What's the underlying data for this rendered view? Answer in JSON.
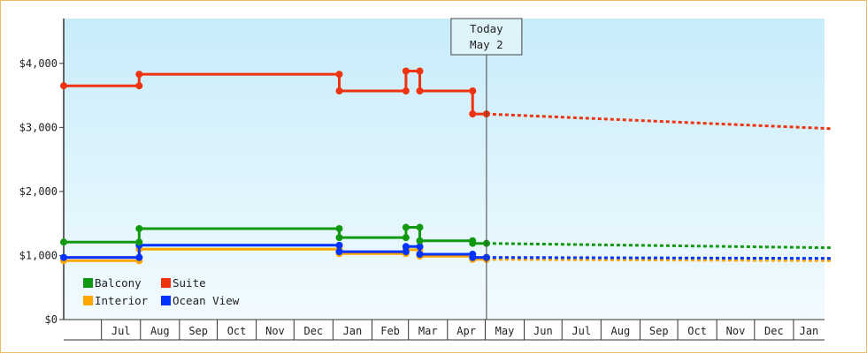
{
  "chart_data": {
    "type": "line",
    "title": "",
    "xlabel": "",
    "ylabel": "",
    "ylim": [
      0,
      4700
    ],
    "yticks": [
      {
        "value": 0,
        "label": "$0"
      },
      {
        "value": 1000,
        "label": "$1,000"
      },
      {
        "value": 2000,
        "label": "$2,000"
      },
      {
        "value": 3000,
        "label": "$3,000"
      },
      {
        "value": 4000,
        "label": "$4,000"
      }
    ],
    "x_axis": {
      "start": "2023-06-01",
      "end": "2025-02-01",
      "labels": [
        {
          "label": "Jul",
          "from": "2023-07-01",
          "to": "2023-08-01"
        },
        {
          "label": "Aug",
          "from": "2023-08-01",
          "to": "2023-09-01"
        },
        {
          "label": "Sep",
          "from": "2023-09-01",
          "to": "2023-10-01"
        },
        {
          "label": "Oct",
          "from": "2023-10-01",
          "to": "2023-11-01"
        },
        {
          "label": "Nov",
          "from": "2023-11-01",
          "to": "2023-12-01"
        },
        {
          "label": "Dec",
          "from": "2023-12-01",
          "to": "2024-01-01"
        },
        {
          "label": "Jan",
          "from": "2024-01-01",
          "to": "2024-02-01"
        },
        {
          "label": "Feb",
          "from": "2024-02-01",
          "to": "2024-03-01"
        },
        {
          "label": "Mar",
          "from": "2024-03-01",
          "to": "2024-04-01"
        },
        {
          "label": "Apr",
          "from": "2024-04-01",
          "to": "2024-05-01"
        },
        {
          "label": "May",
          "from": "2024-05-01",
          "to": "2024-06-01"
        },
        {
          "label": "Jun",
          "from": "2024-06-01",
          "to": "2024-07-01"
        },
        {
          "label": "Jul",
          "from": "2024-07-01",
          "to": "2024-08-01"
        },
        {
          "label": "Aug",
          "from": "2024-08-01",
          "to": "2024-09-01"
        },
        {
          "label": "Sep",
          "from": "2024-09-01",
          "to": "2024-10-01"
        },
        {
          "label": "Oct",
          "from": "2024-10-01",
          "to": "2024-11-01"
        },
        {
          "label": "Nov",
          "from": "2024-11-01",
          "to": "2024-12-01"
        },
        {
          "label": "Dec",
          "from": "2024-12-01",
          "to": "2025-01-01"
        },
        {
          "label": "Jan",
          "from": "2025-01-01",
          "to": "2025-02-01"
        }
      ]
    },
    "today": {
      "line1": "Today",
      "line2": "May 2",
      "date": "2024-05-02"
    },
    "series": [
      {
        "name": "Suite",
        "color": "#ee3311",
        "points": [
          {
            "x": "2023-06-01",
            "y": 3650
          },
          {
            "x": "2023-07-31",
            "y": 3650
          },
          {
            "x": "2023-07-31",
            "y": 3830
          },
          {
            "x": "2024-01-06",
            "y": 3830
          },
          {
            "x": "2024-01-06",
            "y": 3570
          },
          {
            "x": "2024-02-28",
            "y": 3570
          },
          {
            "x": "2024-02-28",
            "y": 3880
          },
          {
            "x": "2024-03-10",
            "y": 3880
          },
          {
            "x": "2024-03-10",
            "y": 3570
          },
          {
            "x": "2024-04-21",
            "y": 3570
          },
          {
            "x": "2024-04-21",
            "y": 3210
          },
          {
            "x": "2024-05-02",
            "y": 3210
          }
        ],
        "forecast": [
          {
            "x": "2024-05-02",
            "y": 3210
          },
          {
            "x": "2025-02-01",
            "y": 2980
          }
        ]
      },
      {
        "name": "Balcony",
        "color": "#119911",
        "points": [
          {
            "x": "2023-06-01",
            "y": 1210
          },
          {
            "x": "2023-07-31",
            "y": 1210
          },
          {
            "x": "2023-07-31",
            "y": 1420
          },
          {
            "x": "2024-01-06",
            "y": 1420
          },
          {
            "x": "2024-01-06",
            "y": 1280
          },
          {
            "x": "2024-02-28",
            "y": 1280
          },
          {
            "x": "2024-02-28",
            "y": 1440
          },
          {
            "x": "2024-03-10",
            "y": 1440
          },
          {
            "x": "2024-03-10",
            "y": 1230
          },
          {
            "x": "2024-04-21",
            "y": 1230
          },
          {
            "x": "2024-04-21",
            "y": 1190
          },
          {
            "x": "2024-05-02",
            "y": 1190
          }
        ],
        "forecast": [
          {
            "x": "2024-05-02",
            "y": 1190
          },
          {
            "x": "2025-02-01",
            "y": 1120
          }
        ]
      },
      {
        "name": "Interior",
        "color": "#ffa500",
        "points": [
          {
            "x": "2023-06-01",
            "y": 920
          },
          {
            "x": "2023-07-31",
            "y": 920
          },
          {
            "x": "2023-07-31",
            "y": 1100
          },
          {
            "x": "2024-01-06",
            "y": 1100
          },
          {
            "x": "2024-01-06",
            "y": 1030
          },
          {
            "x": "2024-02-28",
            "y": 1030
          },
          {
            "x": "2024-02-28",
            "y": 1090
          },
          {
            "x": "2024-03-10",
            "y": 1090
          },
          {
            "x": "2024-03-10",
            "y": 990
          },
          {
            "x": "2024-04-21",
            "y": 990
          },
          {
            "x": "2024-04-21",
            "y": 940
          },
          {
            "x": "2024-05-02",
            "y": 940
          }
        ],
        "forecast": [
          {
            "x": "2024-05-02",
            "y": 940
          },
          {
            "x": "2025-02-01",
            "y": 920
          }
        ]
      },
      {
        "name": "Ocean View",
        "color": "#0033ff",
        "points": [
          {
            "x": "2023-06-01",
            "y": 970
          },
          {
            "x": "2023-07-31",
            "y": 970
          },
          {
            "x": "2023-07-31",
            "y": 1160
          },
          {
            "x": "2024-01-06",
            "y": 1160
          },
          {
            "x": "2024-01-06",
            "y": 1060
          },
          {
            "x": "2024-02-28",
            "y": 1060
          },
          {
            "x": "2024-02-28",
            "y": 1140
          },
          {
            "x": "2024-03-10",
            "y": 1140
          },
          {
            "x": "2024-03-10",
            "y": 1020
          },
          {
            "x": "2024-04-21",
            "y": 1020
          },
          {
            "x": "2024-04-21",
            "y": 970
          },
          {
            "x": "2024-05-02",
            "y": 970
          }
        ],
        "forecast": [
          {
            "x": "2024-05-02",
            "y": 970
          },
          {
            "x": "2025-02-01",
            "y": 955
          }
        ]
      }
    ],
    "legend": {
      "placement": "bottom-left",
      "items": [
        {
          "label": "Balcony",
          "color": "#119911"
        },
        {
          "label": "Suite",
          "color": "#ee3311"
        },
        {
          "label": "Interior",
          "color": "#ffa500"
        },
        {
          "label": "Ocean View",
          "color": "#0033ff"
        }
      ]
    },
    "colors": {
      "background_top": "#c8ecfa",
      "background_bottom": "#f2fbff",
      "frame_border": "#f0b860",
      "axis": "#333333"
    }
  }
}
